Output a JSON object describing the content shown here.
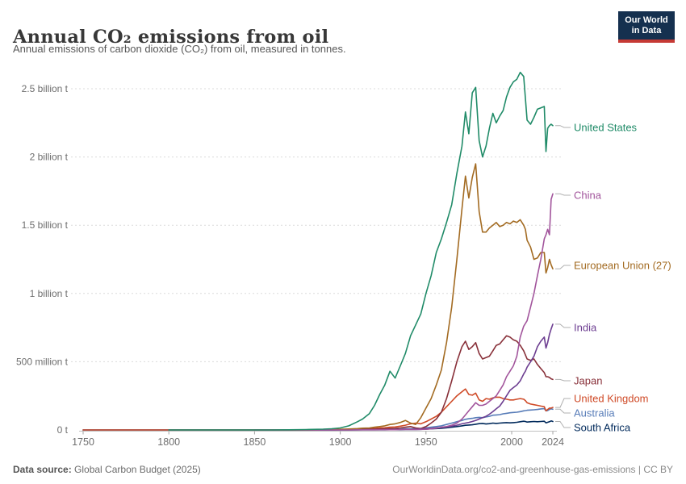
{
  "header": {
    "title": "Annual CO₂ emissions from oil",
    "subtitle": "Annual emissions of carbon dioxide (CO₂) from oil, measured in tonnes.",
    "logo": {
      "line1": "Our World",
      "line2": "in Data",
      "bg_color": "#15304F",
      "accent_color": "#C63A35"
    }
  },
  "footer": {
    "source_label": "Data source:",
    "source_value": " Global Carbon Budget (2025)",
    "right_text": "OurWorldinData.org/co2-and-greenhouse-gas-emissions | CC BY"
  },
  "chart_data": {
    "type": "line",
    "title": "Annual CO₂ emissions from oil",
    "unit": "million tonnes of CO₂ (values below in Mt)",
    "xlim": [
      1750,
      2024
    ],
    "ylim": [
      0,
      2500
    ],
    "grid": "horizontal dashed",
    "legend_position": "right edge entity labels with gray connectors",
    "yticks": [
      {
        "v": 0,
        "label": "0 t"
      },
      {
        "v": 500,
        "label": "500 million t"
      },
      {
        "v": 1000,
        "label": "1 billion t"
      },
      {
        "v": 1500,
        "label": "1.5 billion t"
      },
      {
        "v": 2000,
        "label": "2 billion t"
      },
      {
        "v": 2500,
        "label": "2.5 billion t"
      }
    ],
    "xticks": [
      1750,
      1800,
      1850,
      1900,
      1950,
      2000,
      2024
    ],
    "x": [
      1750,
      1800,
      1850,
      1860,
      1870,
      1880,
      1890,
      1895,
      1900,
      1905,
      1910,
      1913,
      1917,
      1920,
      1923,
      1926,
      1929,
      1932,
      1935,
      1938,
      1941,
      1944,
      1947,
      1950,
      1953,
      1956,
      1959,
      1962,
      1965,
      1968,
      1971,
      1973,
      1975,
      1977,
      1979,
      1981,
      1983,
      1985,
      1987,
      1989,
      1991,
      1993,
      1995,
      1997,
      1999,
      2001,
      2003,
      2005,
      2007,
      2008,
      2009,
      2011,
      2013,
      2015,
      2017,
      2019,
      2020,
      2021,
      2022,
      2023,
      2024
    ],
    "series": [
      {
        "name": "United States",
        "color": "#208B68",
        "label_y": 158,
        "values": [
          null,
          0,
          0,
          0,
          1,
          3,
          6,
          9,
          15,
          30,
          60,
          80,
          120,
          180,
          260,
          330,
          430,
          380,
          470,
          560,
          690,
          770,
          850,
          1000,
          1130,
          1300,
          1400,
          1520,
          1650,
          1880,
          2080,
          2330,
          2170,
          2470,
          2510,
          2120,
          2000,
          2080,
          2210,
          2320,
          2250,
          2300,
          2340,
          2440,
          2510,
          2550,
          2570,
          2620,
          2590,
          2430,
          2270,
          2240,
          2290,
          2350,
          2360,
          2370,
          2040,
          2210,
          2230,
          2240,
          2230
        ]
      },
      {
        "name": "China",
        "color": "#A2559C",
        "label_y": 242,
        "values": [
          null,
          null,
          0,
          0,
          0,
          0,
          0,
          0,
          0,
          0,
          1,
          1,
          1,
          1,
          2,
          2,
          2,
          2,
          3,
          3,
          3,
          3,
          4,
          5,
          8,
          12,
          20,
          25,
          35,
          50,
          80,
          110,
          140,
          170,
          200,
          180,
          180,
          190,
          210,
          230,
          250,
          290,
          330,
          390,
          430,
          470,
          540,
          680,
          760,
          780,
          800,
          900,
          1000,
          1130,
          1250,
          1400,
          1430,
          1470,
          1430,
          1690,
          1730
        ]
      },
      {
        "name": "European Union (27)",
        "color": "#A36B22",
        "label_y": 329,
        "values": [
          null,
          null,
          0,
          0,
          0,
          0,
          2,
          3,
          5,
          7,
          10,
          13,
          15,
          20,
          25,
          30,
          40,
          45,
          55,
          70,
          50,
          40,
          90,
          160,
          230,
          330,
          440,
          640,
          900,
          1250,
          1620,
          1860,
          1700,
          1850,
          1950,
          1600,
          1450,
          1450,
          1480,
          1500,
          1520,
          1490,
          1500,
          1520,
          1510,
          1530,
          1520,
          1540,
          1500,
          1470,
          1390,
          1340,
          1250,
          1260,
          1300,
          1300,
          1150,
          1190,
          1250,
          1210,
          1180
        ]
      },
      {
        "name": "India",
        "color": "#6D3E91",
        "label_y": 406,
        "values": [
          null,
          null,
          0,
          0,
          0,
          0,
          0,
          0,
          1,
          1,
          1,
          2,
          2,
          2,
          2,
          3,
          3,
          3,
          4,
          5,
          5,
          6,
          7,
          10,
          12,
          15,
          18,
          22,
          28,
          35,
          45,
          50,
          55,
          62,
          70,
          80,
          90,
          100,
          115,
          135,
          155,
          175,
          210,
          250,
          290,
          310,
          330,
          360,
          410,
          430,
          460,
          500,
          540,
          610,
          650,
          680,
          600,
          640,
          700,
          740,
          775
        ]
      },
      {
        "name": "Japan",
        "color": "#883039",
        "label_y": 472,
        "values": [
          null,
          null,
          0,
          0,
          0,
          0,
          1,
          1,
          2,
          2,
          3,
          4,
          5,
          6,
          7,
          8,
          10,
          12,
          15,
          20,
          25,
          15,
          10,
          25,
          50,
          80,
          130,
          230,
          360,
          500,
          610,
          650,
          590,
          610,
          640,
          560,
          520,
          530,
          540,
          580,
          620,
          630,
          660,
          690,
          680,
          660,
          650,
          620,
          580,
          550,
          520,
          510,
          520,
          480,
          450,
          420,
          390,
          390,
          385,
          375,
          370
        ]
      },
      {
        "name": "United Kingdom",
        "color": "#CF4A27",
        "label_y": 494,
        "values": [
          0,
          0,
          0,
          0,
          0,
          1,
          2,
          2,
          3,
          4,
          6,
          7,
          12,
          12,
          14,
          16,
          20,
          22,
          28,
          35,
          45,
          50,
          45,
          60,
          80,
          100,
          130,
          170,
          210,
          250,
          280,
          300,
          260,
          255,
          270,
          220,
          210,
          230,
          225,
          235,
          240,
          240,
          230,
          225,
          220,
          220,
          225,
          230,
          225,
          215,
          200,
          190,
          185,
          180,
          175,
          170,
          140,
          150,
          160,
          160,
          165
        ]
      },
      {
        "name": "Australia",
        "color": "#577CB8",
        "label_y": 512,
        "values": [
          0,
          0,
          0,
          0,
          0,
          0,
          0,
          0,
          1,
          1,
          1,
          2,
          2,
          3,
          3,
          4,
          5,
          5,
          6,
          8,
          9,
          10,
          12,
          15,
          20,
          25,
          30,
          40,
          50,
          60,
          70,
          78,
          82,
          85,
          90,
          92,
          90,
          95,
          100,
          108,
          110,
          112,
          118,
          122,
          126,
          128,
          130,
          134,
          140,
          142,
          144,
          146,
          148,
          150,
          154,
          156,
          140,
          142,
          150,
          155,
          152
        ]
      },
      {
        "name": "South Africa",
        "color": "#00295B",
        "label_y": 530,
        "values": [
          0,
          0,
          0,
          0,
          0,
          0,
          0,
          0,
          0,
          0,
          1,
          1,
          1,
          1,
          1,
          1,
          2,
          2,
          2,
          3,
          3,
          3,
          4,
          6,
          8,
          10,
          12,
          16,
          20,
          25,
          30,
          34,
          36,
          38,
          42,
          46,
          48,
          44,
          46,
          50,
          48,
          50,
          52,
          54,
          52,
          54,
          56,
          60,
          64,
          62,
          58,
          60,
          62,
          60,
          62,
          64,
          52,
          56,
          60,
          66,
          62
        ]
      }
    ]
  }
}
